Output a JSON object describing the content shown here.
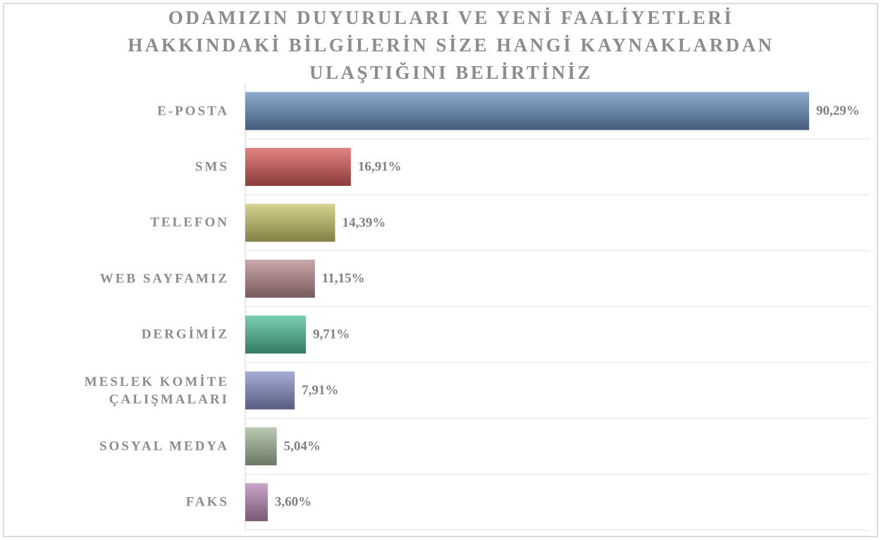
{
  "chart_data": {
    "type": "bar",
    "orientation": "horizontal",
    "title": "ODAMIZIN DUYURULARI VE YENİ FAALİYETLERİ HAKKINDAKİ BİLGİLERİN SİZE HANGİ KAYNAKLARDAN ULAŞTIĞINI BELİRTİNİZ",
    "categories": [
      "E-POSTA",
      "SMS",
      "TELEFON",
      "WEB SAYFAMIZ",
      "DERGİMİZ",
      "MESLEK KOMİTE ÇALIŞMALARI",
      "SOSYAL MEDYA",
      "FAKS"
    ],
    "values": [
      90.29,
      16.91,
      14.39,
      11.15,
      9.71,
      7.91,
      5.04,
      3.6
    ],
    "value_labels": [
      "90,29%",
      "16,91%",
      "14,39%",
      "11,15%",
      "9,71%",
      "7,91%",
      "5,04%",
      "3,60%"
    ],
    "colors": [
      "#6a8fbf",
      "#d85a5a",
      "#c8c66a",
      "#b88a8e",
      "#4fbf98",
      "#8890c8",
      "#a4b89a",
      "#b888b4"
    ],
    "xlim": [
      0,
      100
    ]
  }
}
